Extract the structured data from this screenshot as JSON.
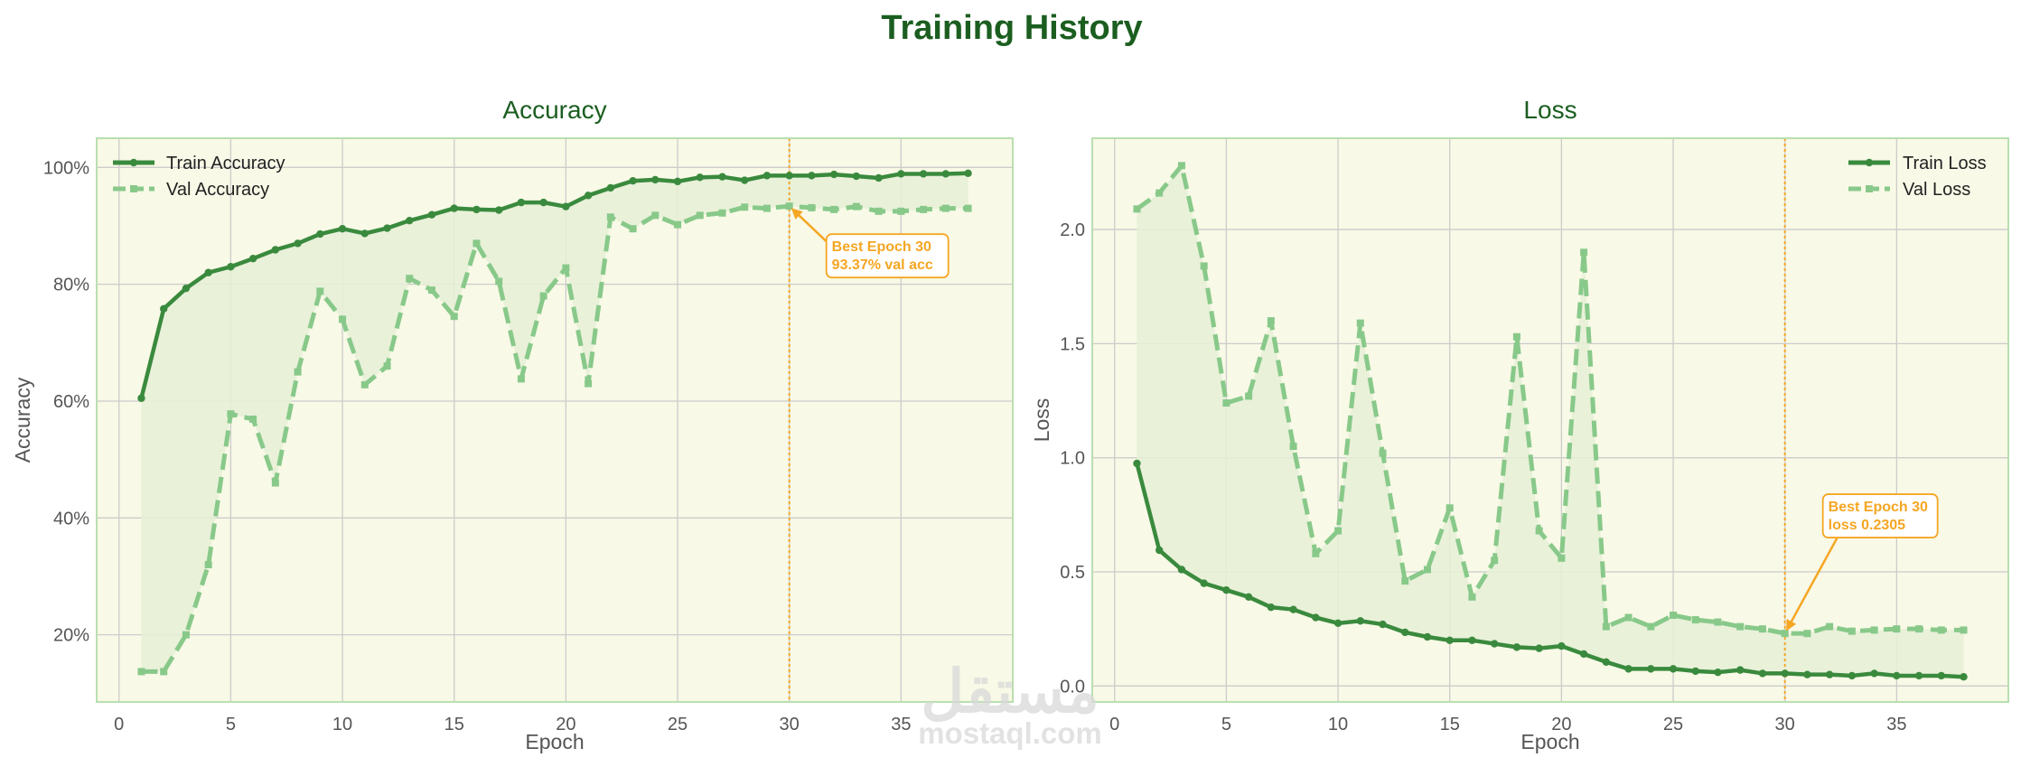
{
  "figure_title": "Training History",
  "watermark": {
    "arabic": "مستقل",
    "latin": "mostaql.com"
  },
  "colors": {
    "train": "#3a8a3e",
    "val": "#88c98a",
    "fill": "#e6f0d6",
    "plot_bg": "#f8f9e6",
    "frame": "#b9dfb0",
    "grid": "#cccccc",
    "best": "#f5a623",
    "title": "#1b5e20"
  },
  "chart_data": [
    {
      "type": "line",
      "title": "Accuracy",
      "xlabel": "Epoch",
      "ylabel": "Accuracy",
      "xlim": [
        -1,
        40
      ],
      "ylim": [
        8.5,
        105
      ],
      "xticks": [
        0,
        5,
        10,
        15,
        20,
        25,
        30,
        35
      ],
      "yticks": [
        20,
        40,
        60,
        80,
        100
      ],
      "ytick_labels": [
        "20%",
        "40%",
        "60%",
        "80%",
        "100%"
      ],
      "legend_position": "upper-left",
      "grid": true,
      "fill_between_series": true,
      "x": [
        1,
        2,
        3,
        4,
        5,
        6,
        7,
        8,
        9,
        10,
        11,
        12,
        13,
        14,
        15,
        16,
        17,
        18,
        19,
        20,
        21,
        22,
        23,
        24,
        25,
        26,
        27,
        28,
        29,
        30,
        31,
        32,
        33,
        34,
        35,
        36,
        37,
        38
      ],
      "series": [
        {
          "name": "Train Accuracy",
          "style": "solid",
          "values": [
            60.5,
            75.8,
            79.3,
            82.0,
            83.0,
            84.4,
            85.9,
            87.0,
            88.6,
            89.5,
            88.7,
            89.6,
            90.9,
            91.9,
            93.0,
            92.8,
            92.7,
            94.0,
            94.0,
            93.3,
            95.2,
            96.5,
            97.7,
            97.9,
            97.6,
            98.3,
            98.4,
            97.8,
            98.6,
            98.6,
            98.6,
            98.8,
            98.5,
            98.2,
            98.9,
            98.9,
            98.9,
            99.0
          ]
        },
        {
          "name": "Val Accuracy",
          "style": "dashed",
          "values": [
            13.7,
            13.7,
            20.0,
            32.0,
            57.8,
            56.9,
            46.0,
            65.0,
            78.8,
            74.0,
            62.8,
            66.0,
            81.0,
            79.0,
            74.5,
            87.0,
            80.5,
            63.8,
            78.0,
            82.8,
            63.0,
            91.5,
            89.5,
            91.8,
            90.2,
            91.8,
            92.2,
            93.2,
            93.0,
            93.37,
            93.1,
            92.8,
            93.3,
            92.5,
            92.5,
            92.8,
            93.0,
            93.0
          ]
        }
      ],
      "best_epoch": 30,
      "annotation": {
        "line1": "Best Epoch 30",
        "line2": "93.37% val acc",
        "x": 30,
        "y": 93.37
      }
    },
    {
      "type": "line",
      "title": "Loss",
      "xlabel": "Epoch",
      "ylabel": "Loss",
      "xlim": [
        -1,
        40
      ],
      "ylim": [
        -0.07,
        2.4
      ],
      "xticks": [
        0,
        5,
        10,
        15,
        20,
        25,
        30,
        35
      ],
      "yticks": [
        0.0,
        0.5,
        1.0,
        1.5,
        2.0
      ],
      "ytick_labels": [
        "0.0",
        "0.5",
        "1.0",
        "1.5",
        "2.0"
      ],
      "legend_position": "upper-right",
      "grid": true,
      "fill_between_series": true,
      "x": [
        1,
        2,
        3,
        4,
        5,
        6,
        7,
        8,
        9,
        10,
        11,
        12,
        13,
        14,
        15,
        16,
        17,
        18,
        19,
        20,
        21,
        22,
        23,
        24,
        25,
        26,
        27,
        28,
        29,
        30,
        31,
        32,
        33,
        34,
        35,
        36,
        37,
        38
      ],
      "series": [
        {
          "name": "Train Loss",
          "style": "solid",
          "values": [
            0.975,
            0.595,
            0.51,
            0.45,
            0.42,
            0.39,
            0.345,
            0.335,
            0.3,
            0.275,
            0.285,
            0.27,
            0.235,
            0.215,
            0.2,
            0.2,
            0.185,
            0.17,
            0.165,
            0.175,
            0.14,
            0.105,
            0.075,
            0.075,
            0.075,
            0.065,
            0.06,
            0.07,
            0.055,
            0.055,
            0.05,
            0.05,
            0.045,
            0.055,
            0.045,
            0.045,
            0.045,
            0.04
          ]
        },
        {
          "name": "Val Loss",
          "style": "dashed",
          "values": [
            2.09,
            2.16,
            2.28,
            1.84,
            1.24,
            1.27,
            1.6,
            1.05,
            0.58,
            0.68,
            1.59,
            1.02,
            0.46,
            0.51,
            0.78,
            0.39,
            0.55,
            1.53,
            0.68,
            0.56,
            1.9,
            0.26,
            0.3,
            0.26,
            0.31,
            0.29,
            0.28,
            0.26,
            0.25,
            0.2305,
            0.23,
            0.26,
            0.24,
            0.245,
            0.25,
            0.25,
            0.245,
            0.245
          ]
        }
      ],
      "best_epoch": 30,
      "annotation": {
        "line1": "Best Epoch 30",
        "line2": "loss 0.2305",
        "x": 30,
        "y": 0.2305
      }
    }
  ]
}
